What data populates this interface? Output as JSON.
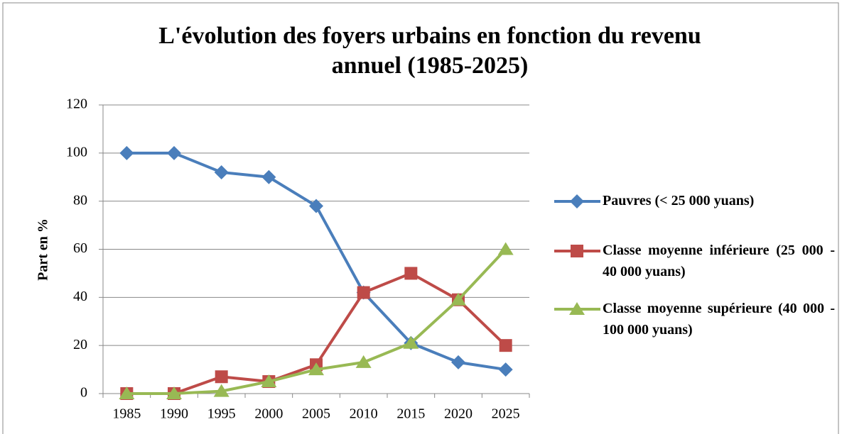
{
  "chart_data": {
    "type": "line",
    "title": "L'évolution des foyers urbains en fonction du revenu annuel (1985-2025)",
    "y_label": "Part en  %",
    "categories": [
      "1985",
      "1990",
      "1995",
      "2000",
      "2005",
      "2010",
      "2015",
      "2020",
      "2025"
    ],
    "series": [
      {
        "name": "Pauvres (< 25 000 yuans)",
        "color": "#4a7ebb",
        "values": [
          100,
          100,
          92,
          90,
          78,
          42,
          21,
          13,
          10
        ]
      },
      {
        "name": "Classe moyenne inférieure (25 000 - 40 000 yuans)",
        "color": "#be4b48",
        "values": [
          0,
          0,
          7,
          5,
          12,
          42,
          50,
          39,
          20
        ]
      },
      {
        "name": "Classe moyenne supérieure (40 000 - 100 000 yuans)",
        "color": "#98b954",
        "values": [
          0,
          0,
          1,
          5,
          10,
          13,
          21,
          39,
          60
        ]
      }
    ],
    "ylim": [
      0,
      120
    ],
    "yticks": [
      0,
      20,
      40,
      60,
      80,
      100,
      120
    ],
    "grid": true,
    "legend": "right"
  }
}
